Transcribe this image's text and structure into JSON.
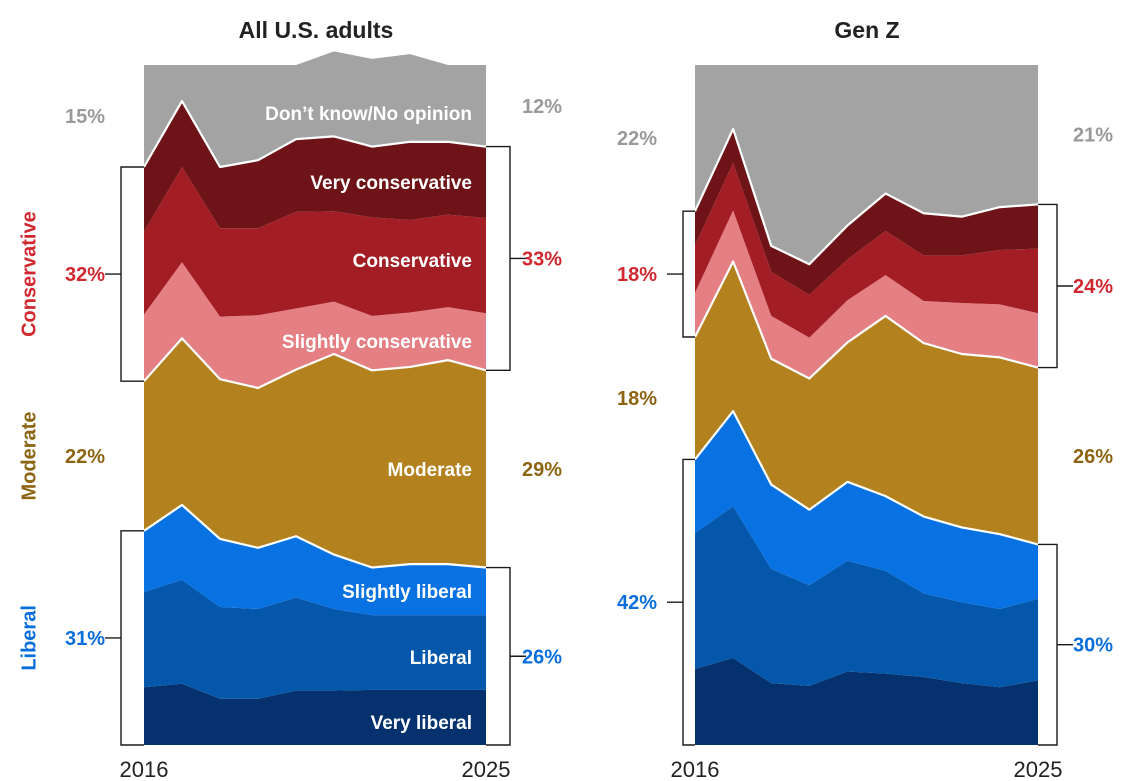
{
  "chart_data": [
    {
      "type": "area",
      "stacked": true,
      "normalized_to": 100,
      "title": "All U.S. adults",
      "x": [
        2016,
        2017,
        2018,
        2019,
        2020,
        2021,
        2022,
        2023,
        2024,
        2025
      ],
      "xticks": [
        "2016",
        "2025"
      ],
      "ylim": [
        0,
        100
      ],
      "series": [
        {
          "name": "Very liberal",
          "color": "#05326e",
          "values": [
            8.5,
            9.0,
            6.8,
            6.8,
            8.0,
            8.0,
            8.1,
            8.1,
            8.1,
            8.1
          ]
        },
        {
          "name": "Liberal",
          "color": "#0457aa",
          "values": [
            14.0,
            15.3,
            13.5,
            13.2,
            13.7,
            12.0,
            11.0,
            11.0,
            11.0,
            11.0
          ]
        },
        {
          "name": "Slightly liberal",
          "color": "#0872e3",
          "values": [
            9.0,
            11.0,
            10.0,
            9.0,
            9.0,
            8.0,
            7.0,
            7.5,
            7.5,
            7.0
          ]
        },
        {
          "name": "Moderate",
          "color": "#b3821f",
          "values": [
            22.0,
            24.5,
            23.5,
            23.5,
            24.5,
            29.5,
            29.0,
            29.0,
            30.0,
            29.0
          ]
        },
        {
          "name": "Slightly conservative",
          "color": "#e47f84",
          "values": [
            9.8,
            11.2,
            9.2,
            10.7,
            9.0,
            7.7,
            8.0,
            8.0,
            7.8,
            8.4
          ]
        },
        {
          "name": "Conservative",
          "color": "#a31e24",
          "values": [
            12.2,
            14.0,
            13.0,
            12.8,
            14.2,
            13.3,
            14.5,
            13.6,
            13.6,
            14.0
          ]
        },
        {
          "name": "Very conservative",
          "color": "#6e1419",
          "values": [
            9.5,
            9.7,
            9.0,
            10.0,
            10.7,
            11.0,
            10.4,
            11.5,
            10.7,
            10.5
          ]
        },
        {
          "name": "Don’t know/No opinion",
          "color": "#a3a3a3",
          "values": [
            15.0,
            5.3,
            15.0,
            14.0,
            10.9,
            12.5,
            12.9,
            12.9,
            11.3,
            12.0
          ]
        }
      ],
      "value_labels_start": {
        "Don’t know/No opinion": "15%",
        "Conservative": "32%",
        "Moderate": "22%",
        "Liberal": "31%"
      },
      "value_labels_end": {
        "Don’t know/No opinion": "12%",
        "Conservative": "33%",
        "Moderate": "29%",
        "Liberal": "26%"
      },
      "group_labels": [
        "Conservative",
        "Moderate",
        "Liberal"
      ]
    },
    {
      "type": "area",
      "stacked": true,
      "normalized_to": 100,
      "title": "Gen Z",
      "x": [
        2016,
        2017,
        2018,
        2019,
        2020,
        2021,
        2022,
        2023,
        2024,
        2025
      ],
      "xticks": [
        "2016",
        "2025"
      ],
      "ylim": [
        0,
        100
      ],
      "series": [
        {
          "name": "Very liberal",
          "color": "#05326e",
          "values": [
            11.2,
            12.8,
            9.1,
            8.7,
            10.8,
            10.5,
            10.0,
            9.1,
            8.5,
            9.5
          ]
        },
        {
          "name": "Liberal",
          "color": "#0457aa",
          "values": [
            20.0,
            22.3,
            16.8,
            14.8,
            16.3,
            15.1,
            12.3,
            11.9,
            11.5,
            12.0
          ]
        },
        {
          "name": "Slightly liberal",
          "color": "#0872e3",
          "values": [
            10.8,
            14.0,
            12.4,
            11.1,
            11.6,
            11.0,
            11.3,
            11.0,
            11.0,
            8.0
          ]
        },
        {
          "name": "Moderate",
          "color": "#b3821f",
          "values": [
            18.0,
            22.0,
            18.5,
            19.3,
            20.5,
            26.5,
            25.5,
            25.5,
            26.0,
            26.0
          ]
        },
        {
          "name": "Slightly conservative",
          "color": "#e47f84",
          "values": [
            6.5,
            7.5,
            6.3,
            6.0,
            6.2,
            6.0,
            6.2,
            7.5,
            7.8,
            8.0
          ]
        },
        {
          "name": "Conservative",
          "color": "#a31e24",
          "values": [
            7.0,
            7.0,
            6.5,
            6.3,
            6.0,
            6.5,
            6.7,
            7.0,
            8.0,
            9.5
          ]
        },
        {
          "name": "Very conservative",
          "color": "#6e1419",
          "values": [
            5.0,
            5.0,
            3.8,
            4.5,
            5.0,
            5.5,
            6.2,
            5.7,
            6.3,
            6.5
          ]
        },
        {
          "name": "Don’t know/No opinion",
          "color": "#a3a3a3",
          "values": [
            21.5,
            9.4,
            26.6,
            29.3,
            23.6,
            18.9,
            21.8,
            22.3,
            20.9,
            20.5
          ]
        }
      ],
      "value_labels_start": {
        "Don’t know/No opinion": "22%",
        "Conservative": "18%",
        "Moderate": "18%",
        "Liberal": "42%"
      },
      "value_labels_end": {
        "Don’t know/No opinion": "21%",
        "Conservative": "24%",
        "Moderate": "26%",
        "Liberal": "30%"
      },
      "group_labels": [
        "Conservative",
        "Moderate",
        "Liberal"
      ]
    }
  ],
  "colors": {
    "conservative_text": "#d0282e",
    "moderate_text": "#8c6412",
    "liberal_text": "#0a6fdc",
    "no_opinion_text": "#999999",
    "inner_label_text": "#ffffff"
  }
}
